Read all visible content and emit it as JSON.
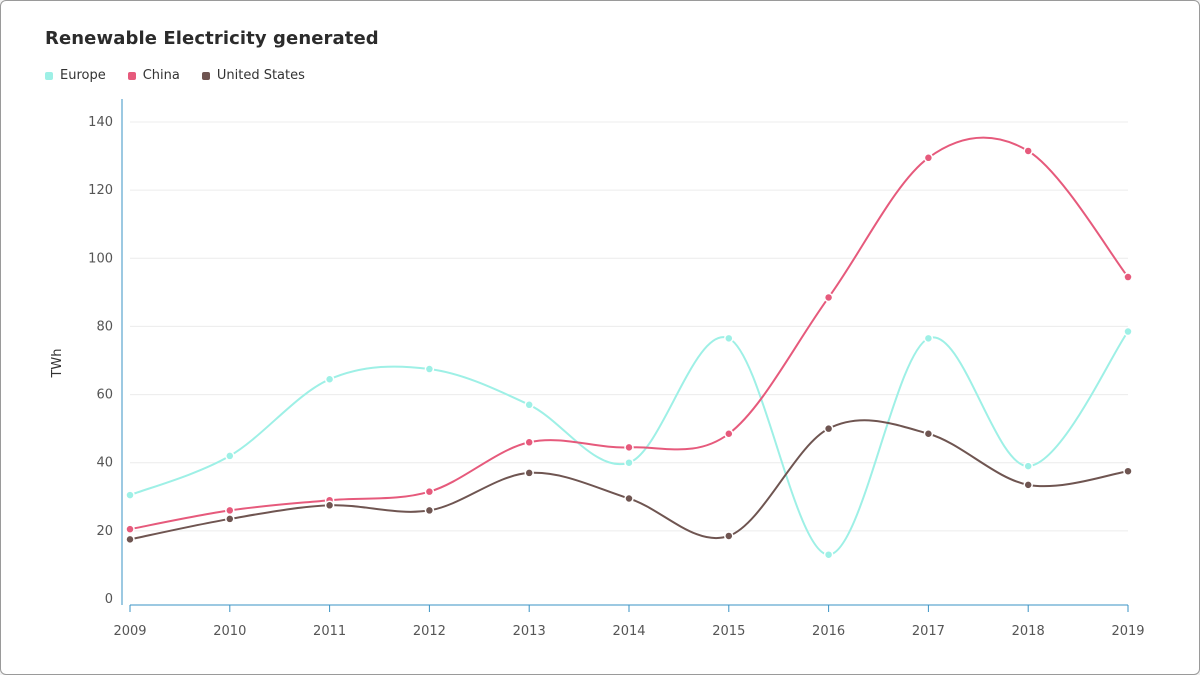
{
  "chart_data": {
    "type": "line",
    "title": "Renewable Electricity generated",
    "xlabel": "",
    "ylabel": "TWh",
    "x": [
      "2009",
      "2010",
      "2011",
      "2012",
      "2013",
      "2014",
      "2015",
      "2016",
      "2017",
      "2018",
      "2019"
    ],
    "ylim": [
      0,
      140
    ],
    "yticks": [
      0,
      20,
      40,
      60,
      80,
      100,
      120,
      140
    ],
    "grid": true,
    "legend_position": "top-left",
    "series": [
      {
        "name": "Europe",
        "color": "#9ef0e6",
        "values": [
          30.5,
          42,
          64.5,
          67.5,
          57,
          40,
          76.5,
          13,
          76.5,
          39,
          78.5
        ]
      },
      {
        "name": "China",
        "color": "#e65a7c",
        "values": [
          20.5,
          26,
          29,
          31.5,
          46,
          44.5,
          48.5,
          88.5,
          129.5,
          131.5,
          94.5
        ]
      },
      {
        "name": "United States",
        "color": "#6f5551",
        "values": [
          17.5,
          23.5,
          27.5,
          26,
          37,
          29.5,
          18.5,
          50,
          48.5,
          33.5,
          37.5
        ]
      }
    ]
  }
}
